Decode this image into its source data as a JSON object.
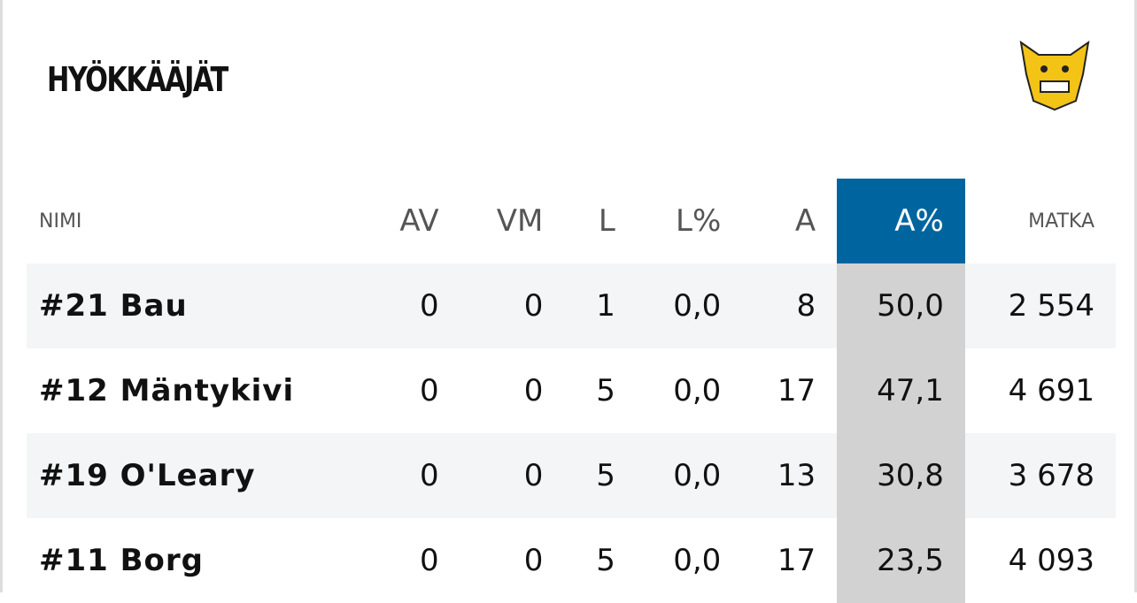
{
  "header": {
    "title": "HYÖKKÄÄJÄT"
  },
  "table": {
    "columns": [
      "NIMI",
      "AV",
      "VM",
      "L",
      "L%",
      "A",
      "A%",
      "MATKA"
    ],
    "rows": [
      [
        "#21 Bau",
        "0",
        "0",
        "1",
        "0,0",
        "8",
        "50,0",
        "2 554"
      ],
      [
        "#12 Mäntykivi",
        "0",
        "0",
        "5",
        "0,0",
        "17",
        "47,1",
        "4 691"
      ],
      [
        "#19 O'Leary",
        "0",
        "0",
        "5",
        "0,0",
        "13",
        "30,8",
        "3 678"
      ],
      [
        "#11 Borg",
        "0",
        "0",
        "5",
        "0,0",
        "17",
        "23,5",
        "4 093"
      ]
    ]
  }
}
